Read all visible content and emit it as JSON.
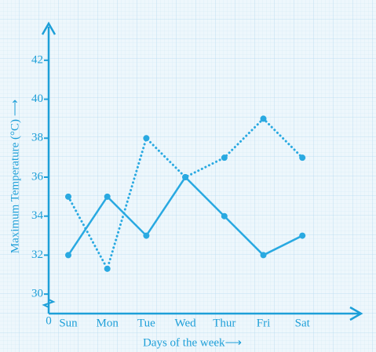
{
  "chart_data": {
    "type": "line",
    "x_label": "Days of the week⟶",
    "y_label": "Maximum Temperature (°C) ⟶",
    "origin_label": "0",
    "categories": [
      "Sun",
      "Mon",
      "Tue",
      "Wed",
      "Thur",
      "Fri",
      "Sat"
    ],
    "series": [
      {
        "color": "#29a9e1",
        "line_style": "solid",
        "values": [
          32,
          35,
          33,
          36,
          34,
          32,
          33
        ]
      },
      {
        "color": "#29a9e1",
        "line_style": "dotted",
        "values": [
          35,
          31.3,
          38,
          36,
          37,
          39,
          37
        ]
      }
    ],
    "ylim": [
      29,
      43
    ],
    "yticks": [
      30,
      32,
      34,
      36,
      38,
      40,
      42
    ],
    "grid": true
  }
}
